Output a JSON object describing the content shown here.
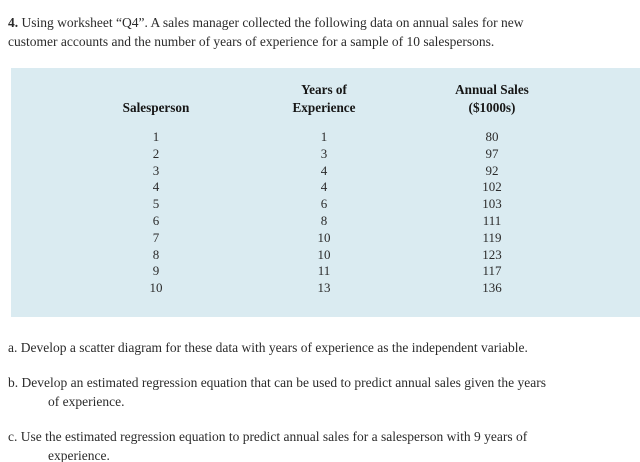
{
  "page": {
    "background": "#ffffff",
    "table_background": "#daebf1",
    "text_color": "#2b2b2b"
  },
  "problem": {
    "number": "4.",
    "intro": "Using worksheet “Q4”. A sales manager collected the following data on annual sales for new customer accounts and the number of years of experience for a sample of 10 salespersons."
  },
  "table": {
    "headers": [
      {
        "lines": [
          "Salesperson"
        ]
      },
      {
        "lines": [
          "Years of",
          "Experience"
        ]
      },
      {
        "lines": [
          "Annual Sales",
          "($1000s)"
        ]
      }
    ],
    "rows": [
      [
        "1",
        "1",
        "80"
      ],
      [
        "2",
        "3",
        "97"
      ],
      [
        "3",
        "4",
        "92"
      ],
      [
        "4",
        "4",
        "102"
      ],
      [
        "5",
        "6",
        "103"
      ],
      [
        "6",
        "8",
        "111"
      ],
      [
        "7",
        "10",
        "119"
      ],
      [
        "8",
        "10",
        "123"
      ],
      [
        "9",
        "11",
        "117"
      ],
      [
        "10",
        "13",
        "136"
      ]
    ]
  },
  "questions": [
    {
      "label": "a.",
      "text": "Develop a scatter diagram for these data with years of experience as the independent variable."
    },
    {
      "label": "b.",
      "text": "Develop an estimated regression equation that can be used to predict annual sales given the years of experience."
    },
    {
      "label": "c.",
      "text": "Use the estimated regression equation to predict annual sales for a salesperson with 9 years of experience."
    }
  ]
}
